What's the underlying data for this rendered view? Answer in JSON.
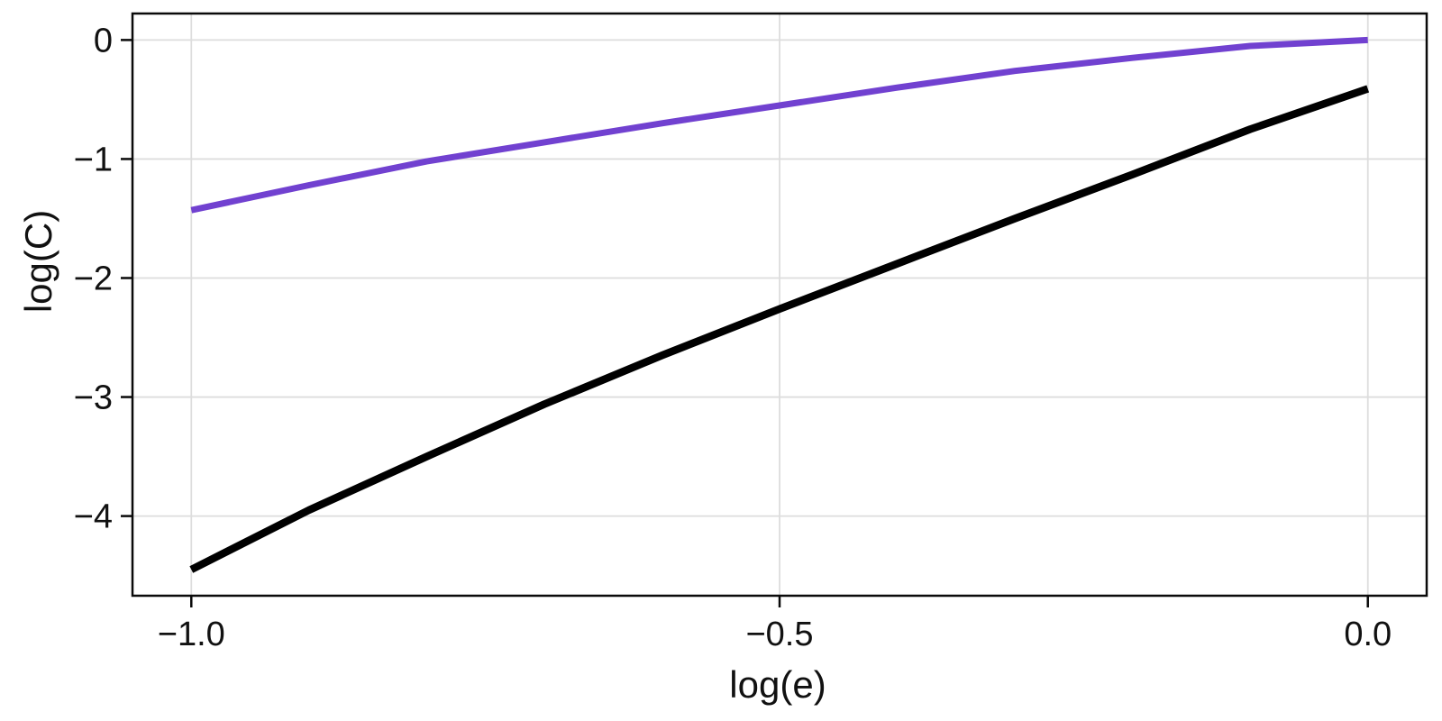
{
  "chart_data": {
    "type": "line",
    "title": "",
    "xlabel": "log(e)",
    "ylabel": "log(C)",
    "xlim": [
      -1.05,
      0.05
    ],
    "ylim": [
      -4.6694,
      0.2224
    ],
    "grid": true,
    "legend": "none",
    "grid_color": "#dddddd",
    "frame_color": "#0a0a0a",
    "background_color": "#ffffff",
    "xticks": {
      "values": [
        -1.0,
        -0.5,
        0.0
      ],
      "labels": [
        "−1.0",
        "−0.5",
        "0.0"
      ]
    },
    "yticks": {
      "values": [
        0,
        -1,
        -2,
        -3,
        -4
      ],
      "labels": [
        "0",
        "−1",
        "−2",
        "−3",
        "−4"
      ]
    },
    "x": [
      -1.0,
      -0.9,
      -0.8,
      -0.7,
      -0.6,
      -0.5,
      -0.4,
      -0.3,
      -0.2,
      -0.1,
      0.0
    ],
    "series": [
      {
        "name": "purple-line",
        "color": "#7141d0",
        "stroke_width": 7,
        "values": [
          -1.43,
          -1.22,
          -1.02,
          -0.86,
          -0.7,
          -0.55,
          -0.4,
          -0.26,
          -0.15,
          -0.05,
          0.0
        ]
      },
      {
        "name": "black-line",
        "color": "#000000",
        "stroke_width": 8.5,
        "values": [
          -4.45,
          -3.95,
          -3.5,
          -3.06,
          -2.65,
          -2.26,
          -1.88,
          -1.5,
          -1.13,
          -0.75,
          -0.41
        ]
      }
    ]
  }
}
